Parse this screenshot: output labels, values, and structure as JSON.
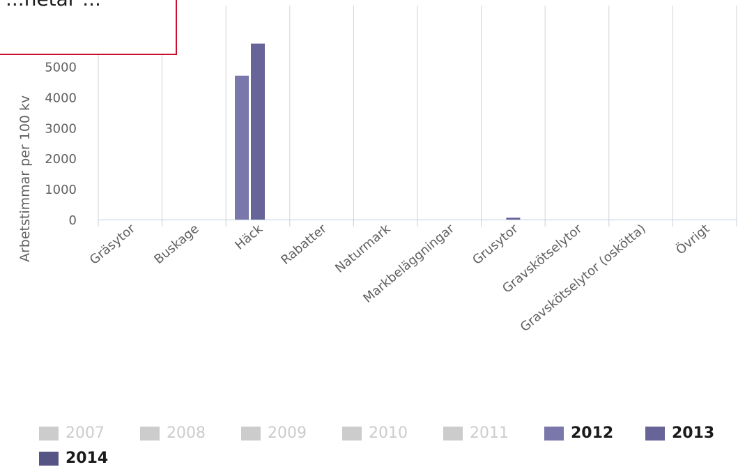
{
  "tooltip": {
    "text": "...hetar ..."
  },
  "chart_data": {
    "type": "bar",
    "title": "",
    "xlabel": "",
    "ylabel": "Arbetstimmar per 100 kv",
    "ylim": [
      0,
      6000
    ],
    "yticks": [
      0,
      1000,
      2000,
      3000,
      4000,
      5000
    ],
    "grid": "vertical",
    "legend_position": "bottom",
    "categories": [
      "Gräsytor",
      "Buskage",
      "Häck",
      "Rabatter",
      "Naturmark",
      "Markbeläggningar",
      "Grusytor",
      "Gravskötselytor",
      "Gravskötselytor (oskötta)",
      "Övrigt"
    ],
    "series": [
      {
        "name": "2007",
        "visible": false,
        "color": "#cccccc",
        "values": [
          null,
          null,
          null,
          null,
          null,
          null,
          null,
          null,
          null,
          null
        ]
      },
      {
        "name": "2008",
        "visible": false,
        "color": "#cccccc",
        "values": [
          null,
          null,
          null,
          null,
          null,
          null,
          null,
          null,
          null,
          null
        ]
      },
      {
        "name": "2009",
        "visible": false,
        "color": "#cccccc",
        "values": [
          null,
          null,
          null,
          null,
          null,
          null,
          null,
          null,
          null,
          null
        ]
      },
      {
        "name": "2010",
        "visible": false,
        "color": "#cccccc",
        "values": [
          null,
          null,
          null,
          null,
          null,
          null,
          null,
          null,
          null,
          null
        ]
      },
      {
        "name": "2011",
        "visible": false,
        "color": "#cccccc",
        "values": [
          null,
          null,
          null,
          null,
          null,
          null,
          null,
          null,
          null,
          null
        ]
      },
      {
        "name": "2012",
        "visible": true,
        "color": "#7a78ab",
        "values": [
          0,
          0,
          4700,
          0,
          0,
          0,
          0,
          0,
          0,
          0
        ]
      },
      {
        "name": "2013",
        "visible": true,
        "color": "#676597",
        "values": [
          0,
          0,
          5750,
          0,
          0,
          0,
          60,
          0,
          0,
          0
        ]
      },
      {
        "name": "2014",
        "visible": true,
        "color": "#565484",
        "values": [
          0,
          0,
          0,
          0,
          0,
          0,
          0,
          0,
          0,
          0
        ]
      }
    ]
  }
}
